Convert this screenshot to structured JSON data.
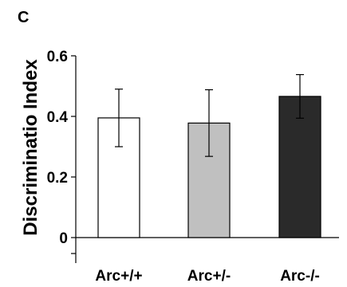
{
  "panel_label": "C",
  "chart_data": {
    "type": "bar",
    "title": "",
    "xlabel": "",
    "ylabel": "Discriminatio Index",
    "categories": [
      "Arc+/+",
      "Arc+/-",
      "Arc-/-"
    ],
    "values": [
      0.395,
      0.378,
      0.466
    ],
    "errors": [
      0.095,
      0.11,
      0.072
    ],
    "bar_colors": [
      "#ffffff",
      "#c0c0c0",
      "#2a2a2a"
    ],
    "ylim": [
      0,
      0.6
    ],
    "yticks": [
      0,
      0.2,
      0.4,
      0.6
    ],
    "ytick_labels": [
      "0",
      "0.2",
      "0.4",
      "0.6"
    ],
    "grid": false,
    "legend": "none"
  }
}
